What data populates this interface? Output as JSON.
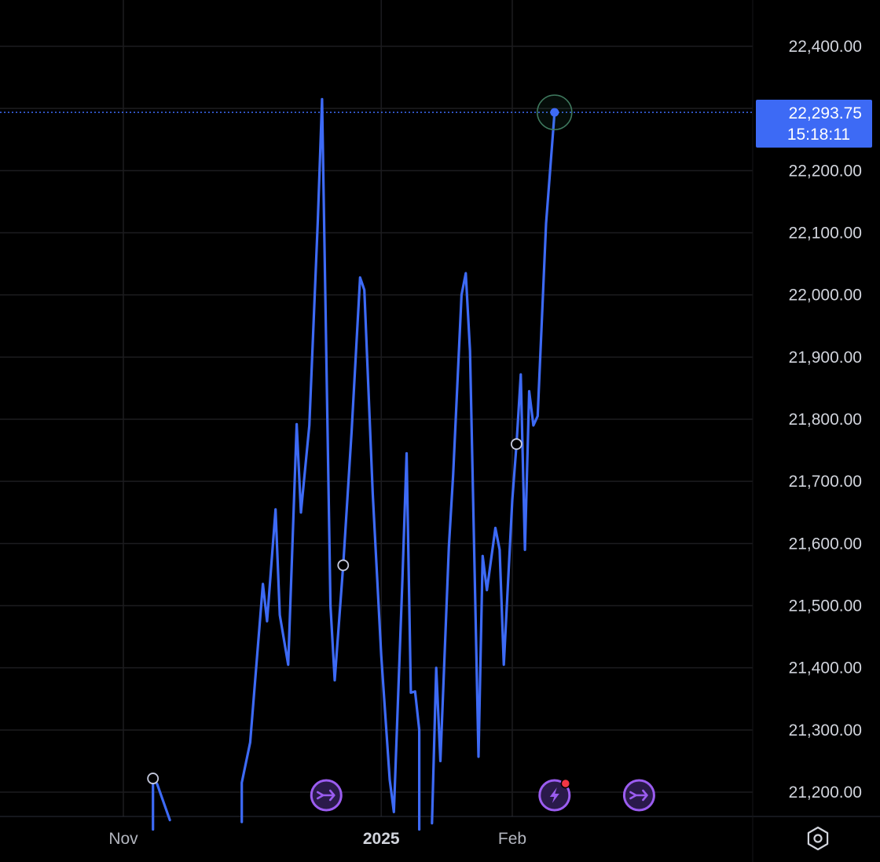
{
  "chart_data": {
    "type": "line",
    "ylim": [
      21140,
      22470
    ],
    "y_ticks": [
      {
        "value": 22400,
        "label": "22,400.00"
      },
      {
        "value": 22200,
        "label": "22,200.00"
      },
      {
        "value": 22100,
        "label": "22,100.00"
      },
      {
        "value": 22000,
        "label": "22,000.00"
      },
      {
        "value": 21900,
        "label": "21,900.00"
      },
      {
        "value": 21800,
        "label": "21,800.00"
      },
      {
        "value": 21700,
        "label": "21,700.00"
      },
      {
        "value": 21600,
        "label": "21,600.00"
      },
      {
        "value": 21500,
        "label": "21,500.00"
      },
      {
        "value": 21400,
        "label": "21,400.00"
      },
      {
        "value": 21300,
        "label": "21,300.00"
      },
      {
        "value": 21200,
        "label": "21,200.00"
      }
    ],
    "x_ticks": [
      {
        "date": "2024-11-01",
        "label": "Nov",
        "bold": false
      },
      {
        "date": "2025-01-01",
        "label": "2025",
        "bold": true
      },
      {
        "date": "2025-02-01",
        "label": "Feb",
        "bold": false
      }
    ],
    "current_price": {
      "value": 22293.75,
      "label": "22,293.75",
      "countdown": "15:18:11"
    },
    "series": [
      {
        "color": "#3d6af5",
        "segments": [
          [
            {
              "x": "2024-11-08",
              "y": 21140
            },
            {
              "x": "2024-11-08",
              "y": 21222
            },
            {
              "x": "2024-11-09",
              "y": 21213
            },
            {
              "x": "2024-11-12",
              "y": 21155
            }
          ],
          [
            {
              "x": "2024-11-29",
              "y": 21152
            },
            {
              "x": "2024-11-29",
              "y": 21215
            },
            {
              "x": "2024-12-01",
              "y": 21280
            },
            {
              "x": "2024-12-04",
              "y": 21535
            },
            {
              "x": "2024-12-05",
              "y": 21475
            },
            {
              "x": "2024-12-07",
              "y": 21655
            },
            {
              "x": "2024-12-08",
              "y": 21485
            },
            {
              "x": "2024-12-10",
              "y": 21405
            },
            {
              "x": "2024-12-12",
              "y": 21792
            },
            {
              "x": "2024-12-13",
              "y": 21650
            },
            {
              "x": "2024-12-15",
              "y": 21790
            },
            {
              "x": "2024-12-17",
              "y": 22120
            },
            {
              "x": "2024-12-18",
              "y": 22315
            },
            {
              "x": "2024-12-20",
              "y": 21500
            },
            {
              "x": "2024-12-21",
              "y": 21380
            },
            {
              "x": "2024-12-23",
              "y": 21565
            },
            {
              "x": "2024-12-25",
              "y": 21780
            },
            {
              "x": "2024-12-27",
              "y": 22028
            },
            {
              "x": "2024-12-28",
              "y": 22008
            },
            {
              "x": "2024-12-30",
              "y": 21680
            },
            {
              "x": "2025-01-01",
              "y": 21420
            },
            {
              "x": "2025-01-03",
              "y": 21220
            },
            {
              "x": "2025-01-04",
              "y": 21168
            },
            {
              "x": "2025-01-06",
              "y": 21540
            },
            {
              "x": "2025-01-07",
              "y": 21745
            },
            {
              "x": "2025-01-08",
              "y": 21360
            },
            {
              "x": "2025-01-09",
              "y": 21362
            },
            {
              "x": "2025-01-10",
              "y": 21300
            },
            {
              "x": "2025-01-10",
              "y": 21140
            }
          ],
          [
            {
              "x": "2025-01-13",
              "y": 21150
            },
            {
              "x": "2025-01-14",
              "y": 21400
            },
            {
              "x": "2025-01-15",
              "y": 21250
            },
            {
              "x": "2025-01-17",
              "y": 21595
            },
            {
              "x": "2025-01-18",
              "y": 21710
            },
            {
              "x": "2025-01-20",
              "y": 22000
            },
            {
              "x": "2025-01-21",
              "y": 22035
            },
            {
              "x": "2025-01-22",
              "y": 21910
            },
            {
              "x": "2025-01-24",
              "y": 21257
            },
            {
              "x": "2025-01-25",
              "y": 21580
            },
            {
              "x": "2025-01-26",
              "y": 21525
            },
            {
              "x": "2025-01-28",
              "y": 21625
            },
            {
              "x": "2025-01-29",
              "y": 21590
            },
            {
              "x": "2025-01-30",
              "y": 21405
            },
            {
              "x": "2025-02-01",
              "y": 21670
            },
            {
              "x": "2025-02-02",
              "y": 21760
            },
            {
              "x": "2025-02-03",
              "y": 21872
            },
            {
              "x": "2025-02-04",
              "y": 21590
            },
            {
              "x": "2025-02-05",
              "y": 21845
            },
            {
              "x": "2025-02-06",
              "y": 21790
            },
            {
              "x": "2025-02-07",
              "y": 21805
            },
            {
              "x": "2025-02-09",
              "y": 22115
            },
            {
              "x": "2025-02-11",
              "y": 22293.75
            }
          ]
        ]
      }
    ],
    "markers": [
      {
        "x": "2024-11-08",
        "y": 21222,
        "kind": "ring"
      },
      {
        "x": "2024-12-23",
        "y": 21565,
        "kind": "ring"
      },
      {
        "x": "2025-02-02",
        "y": 21760,
        "kind": "ring"
      }
    ],
    "events": [
      {
        "x": "2024-12-19",
        "icon": "dividend-arrow-icon",
        "alert": false
      },
      {
        "x": "2025-02-11",
        "icon": "lightning-icon",
        "alert": true
      },
      {
        "x": "2025-03-03",
        "icon": "dividend-arrow-icon",
        "alert": false
      }
    ]
  },
  "ui": {
    "settings_icon": "hexagon-settings-icon"
  },
  "colors": {
    "line": "#3d6af5",
    "grid": "#1c1c1f",
    "event": "#9b5cf0",
    "alert": "#f23645",
    "price_label_bg": "#3d6af5"
  }
}
